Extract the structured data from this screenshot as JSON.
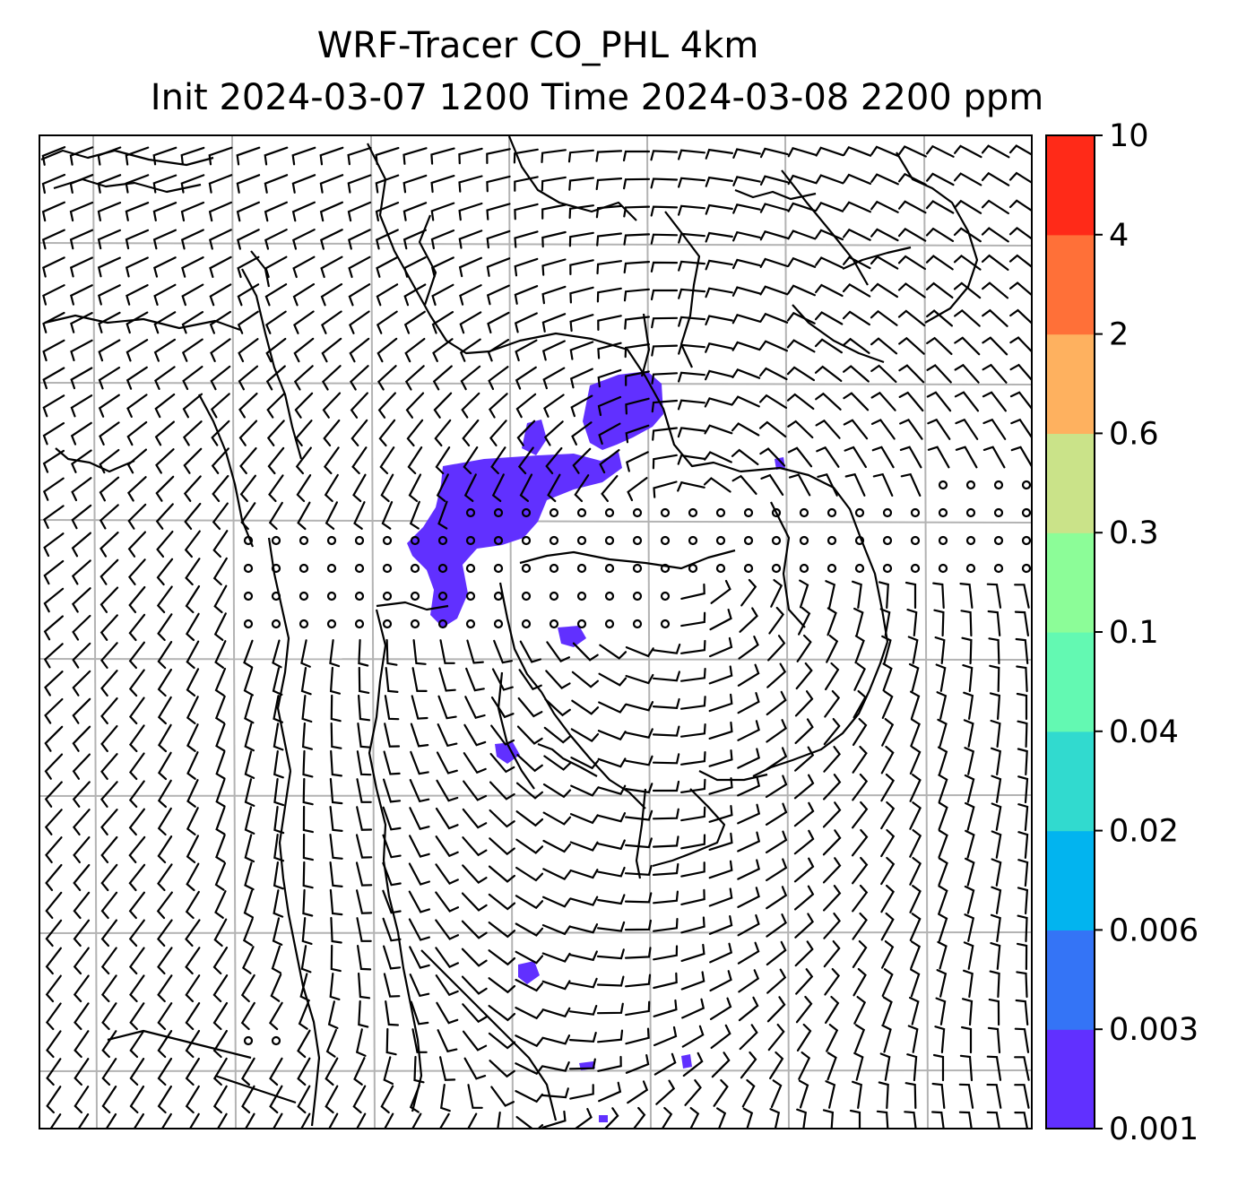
{
  "title": {
    "line1": "WRF-Tracer CO_PHL 4km",
    "line2": "Init 2024-03-07 1200 Time 2024-03-08 2200 ppm"
  },
  "colorbar": {
    "ticks": [
      "0.001",
      "0.003",
      "0.006",
      "0.02",
      "0.04",
      "0.1",
      "0.3",
      "0.6",
      "2",
      "4",
      "10"
    ],
    "colors": [
      "#6130ff",
      "#3474f6",
      "#02b4ef",
      "#31dacf",
      "#63f9b2",
      "#8cfd98",
      "#cae389",
      "#feb15f",
      "#ff7038",
      "#ff2a18"
    ]
  },
  "map": {
    "background": "#ffffff",
    "gridline_color": "#b3b3b3",
    "plume_color": "#6130ff",
    "vector_color": "#000000",
    "coastline_color": "#000000"
  }
}
